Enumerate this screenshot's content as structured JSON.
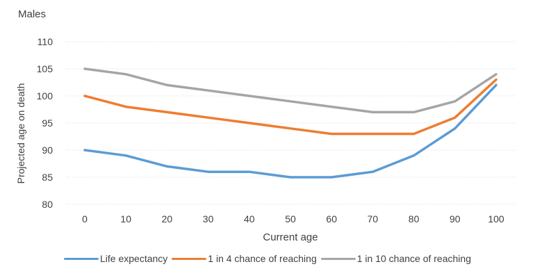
{
  "chart_data": {
    "type": "line",
    "title": "Males",
    "xlabel": "Current age",
    "ylabel": "Projected age on death",
    "ylim": [
      80,
      110
    ],
    "yticks": [
      80,
      85,
      90,
      95,
      100,
      105,
      110
    ],
    "x": [
      0,
      10,
      20,
      30,
      40,
      50,
      60,
      70,
      80,
      90,
      100
    ],
    "grid": true,
    "legend": "bottom",
    "series": [
      {
        "name": "Life expectancy",
        "color": "#5B9BD5",
        "values": [
          90,
          89,
          87,
          86,
          86,
          85,
          85,
          86,
          89,
          94,
          102
        ]
      },
      {
        "name": "1 in 4 chance of reaching",
        "color": "#ED7D31",
        "values": [
          100,
          98,
          97,
          96,
          95,
          94,
          93,
          93,
          93,
          96,
          103
        ]
      },
      {
        "name": "1 in 10 chance of reaching",
        "color": "#A5A5A5",
        "values": [
          105,
          104,
          102,
          101,
          100,
          99,
          98,
          97,
          97,
          99,
          104
        ]
      }
    ]
  }
}
